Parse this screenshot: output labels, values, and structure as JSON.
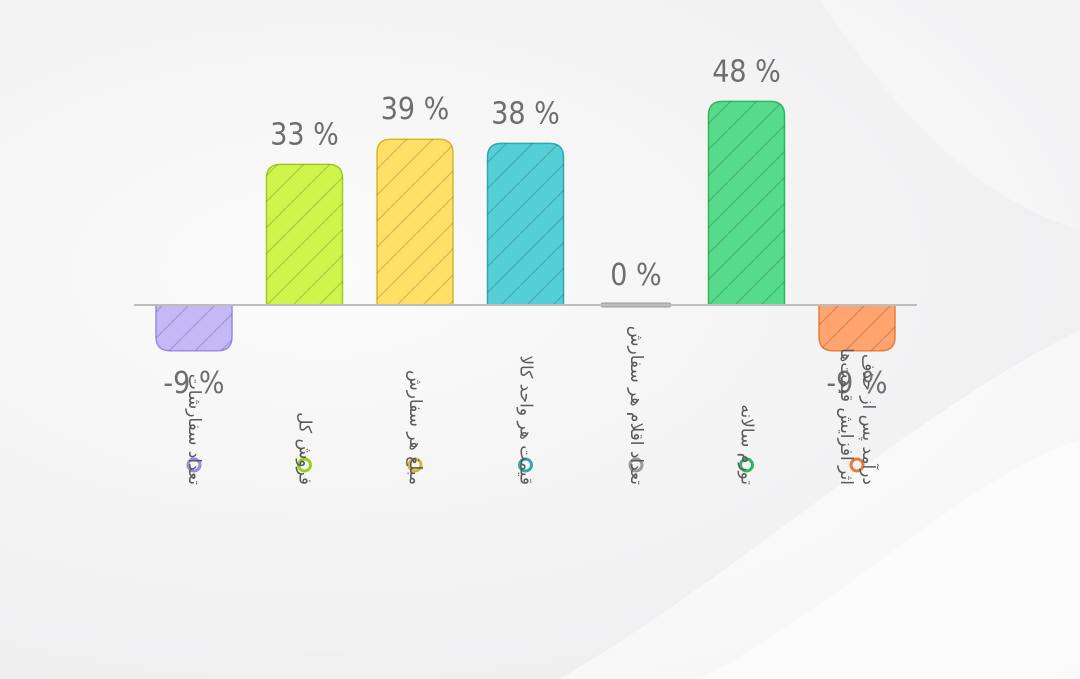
{
  "chart_data": {
    "type": "bar",
    "title": "",
    "xlabel": "",
    "ylabel": "",
    "ylim": [
      -9,
      48
    ],
    "grid": false,
    "legend": "none",
    "categories": [
      "تعداد سفارشات",
      "فروش کل",
      "مبلغ هر سفارش",
      "قیمت هر واحد کالا",
      "تعداد اقلام هر سفارش",
      "تورم سالانه",
      "درآمد پس از حذف اثر افزایش قیمت‌ها"
    ],
    "category_lines": [
      [
        "تعداد سفارشات"
      ],
      [
        "فروش کل"
      ],
      [
        "مبلغ هر سفارش"
      ],
      [
        "قیمت هر واحد کالا"
      ],
      [
        "تعداد اقلام هر سفارش"
      ],
      [
        "تورم سالانه"
      ],
      [
        "درآمد پس از حذف",
        "اثر افزایش قیمت‌ها"
      ]
    ],
    "values": [
      -9,
      33,
      39,
      38,
      0,
      48,
      -9
    ],
    "value_labels": [
      "-9 %",
      "33 %",
      "39 %",
      "38 %",
      "0 %",
      "48 %",
      "-9 %"
    ],
    "colors": [
      "#c4b8f7",
      "#cdf54c",
      "#ffe066",
      "#55cfd6",
      "#bdbdbd",
      "#55db8a",
      "#ffa46e"
    ],
    "stroke_colors": [
      "#9a8ce0",
      "#9fcc22",
      "#d9b632",
      "#2fa8b0",
      "#9a9a9a",
      "#2fb565",
      "#e87d3a"
    ]
  }
}
